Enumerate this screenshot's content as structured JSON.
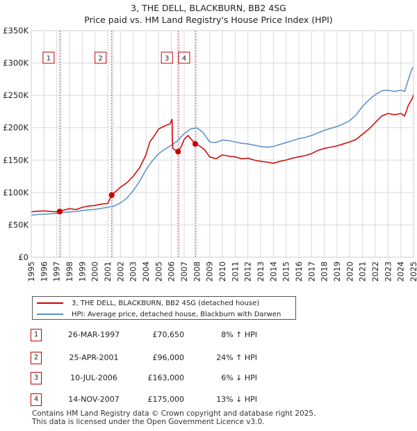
{
  "chart_data": {
    "type": "line",
    "title": "3, THE DELL, BLACKBURN, BB2 4SG",
    "subtitle": "Price paid vs. HM Land Registry's House Price Index (HPI)",
    "xlabel": "",
    "ylabel": "",
    "xlim": [
      1995,
      2025
    ],
    "ylim": [
      0,
      350000
    ],
    "x_ticks": [
      "1995",
      "1996",
      "1997",
      "1998",
      "1999",
      "2000",
      "2001",
      "2002",
      "2003",
      "2004",
      "2005",
      "2006",
      "2007",
      "2008",
      "2009",
      "2010",
      "2011",
      "2012",
      "2013",
      "2014",
      "2015",
      "2016",
      "2017",
      "2018",
      "2019",
      "2020",
      "2021",
      "2022",
      "2023",
      "2024",
      "2025"
    ],
    "y_ticks": [
      {
        "value": 0,
        "label": "£0"
      },
      {
        "value": 50000,
        "label": "£50K"
      },
      {
        "value": 100000,
        "label": "£100K"
      },
      {
        "value": 150000,
        "label": "£150K"
      },
      {
        "value": 200000,
        "label": "£200K"
      },
      {
        "value": 250000,
        "label": "£250K"
      },
      {
        "value": 300000,
        "label": "£300K"
      },
      {
        "value": 350000,
        "label": "£350K"
      }
    ],
    "grid": true,
    "series": [
      {
        "name": "3, THE DELL, BLACKBURN, BB2 4SG (detached house)",
        "color": "#cc0000",
        "points": [
          [
            1995.0,
            70000
          ],
          [
            1995.5,
            71000
          ],
          [
            1996.0,
            71500
          ],
          [
            1996.5,
            70500
          ],
          [
            1997.0,
            70000
          ],
          [
            1997.23,
            70650
          ],
          [
            1997.6,
            73000
          ],
          [
            1998.0,
            75000
          ],
          [
            1998.5,
            73500
          ],
          [
            1999.0,
            77000
          ],
          [
            1999.5,
            79000
          ],
          [
            2000.0,
            80000
          ],
          [
            2000.5,
            82000
          ],
          [
            2001.0,
            83000
          ],
          [
            2001.31,
            96000
          ],
          [
            2001.7,
            103000
          ],
          [
            2002.0,
            108000
          ],
          [
            2002.5,
            115000
          ],
          [
            2003.0,
            125000
          ],
          [
            2003.5,
            138000
          ],
          [
            2004.0,
            158000
          ],
          [
            2004.3,
            178000
          ],
          [
            2004.6,
            186000
          ],
          [
            2005.0,
            198000
          ],
          [
            2005.5,
            203000
          ],
          [
            2005.9,
            206000
          ],
          [
            2006.05,
            213000
          ],
          [
            2006.1,
            168000
          ],
          [
            2006.52,
            163000
          ],
          [
            2006.8,
            172000
          ],
          [
            2007.0,
            182000
          ],
          [
            2007.3,
            188000
          ],
          [
            2007.6,
            181000
          ],
          [
            2007.87,
            175000
          ],
          [
            2008.2,
            172000
          ],
          [
            2008.6,
            166000
          ],
          [
            2009.0,
            155000
          ],
          [
            2009.5,
            152000
          ],
          [
            2010.0,
            158000
          ],
          [
            2010.5,
            156000
          ],
          [
            2011.0,
            155000
          ],
          [
            2011.5,
            152000
          ],
          [
            2012.0,
            153000
          ],
          [
            2012.5,
            150000
          ],
          [
            2013.0,
            148000
          ],
          [
            2013.5,
            147000
          ],
          [
            2014.0,
            145000
          ],
          [
            2014.5,
            148000
          ],
          [
            2015.0,
            150000
          ],
          [
            2015.5,
            153000
          ],
          [
            2016.0,
            155000
          ],
          [
            2016.5,
            157000
          ],
          [
            2017.0,
            160000
          ],
          [
            2017.5,
            165000
          ],
          [
            2018.0,
            168000
          ],
          [
            2018.5,
            170000
          ],
          [
            2019.0,
            172000
          ],
          [
            2019.5,
            175000
          ],
          [
            2020.0,
            178000
          ],
          [
            2020.5,
            182000
          ],
          [
            2021.0,
            190000
          ],
          [
            2021.5,
            198000
          ],
          [
            2022.0,
            208000
          ],
          [
            2022.5,
            218000
          ],
          [
            2023.0,
            222000
          ],
          [
            2023.5,
            220000
          ],
          [
            2024.0,
            222000
          ],
          [
            2024.3,
            218000
          ],
          [
            2024.6,
            235000
          ],
          [
            2024.9,
            245000
          ],
          [
            2025.0,
            252000
          ]
        ]
      },
      {
        "name": "HPI: Average price, detached house, Blackburn with Darwen",
        "color": "#5b8cc8",
        "points": [
          [
            1995.0,
            65000
          ],
          [
            1995.5,
            66000
          ],
          [
            1996.0,
            66500
          ],
          [
            1996.5,
            67000
          ],
          [
            1997.0,
            67500
          ],
          [
            1997.5,
            69000
          ],
          [
            1998.0,
            70000
          ],
          [
            1998.5,
            70500
          ],
          [
            1999.0,
            72000
          ],
          [
            1999.5,
            73000
          ],
          [
            2000.0,
            74000
          ],
          [
            2000.5,
            75500
          ],
          [
            2001.0,
            77000
          ],
          [
            2001.5,
            79000
          ],
          [
            2002.0,
            84000
          ],
          [
            2002.5,
            91000
          ],
          [
            2003.0,
            103000
          ],
          [
            2003.5,
            117000
          ],
          [
            2004.0,
            135000
          ],
          [
            2004.5,
            149000
          ],
          [
            2005.0,
            160000
          ],
          [
            2005.5,
            167000
          ],
          [
            2006.0,
            173000
          ],
          [
            2006.5,
            180000
          ],
          [
            2007.0,
            191000
          ],
          [
            2007.5,
            198000
          ],
          [
            2008.0,
            200000
          ],
          [
            2008.5,
            192000
          ],
          [
            2009.0,
            178000
          ],
          [
            2009.5,
            177000
          ],
          [
            2010.0,
            181000
          ],
          [
            2010.5,
            180000
          ],
          [
            2011.0,
            178000
          ],
          [
            2011.5,
            176000
          ],
          [
            2012.0,
            175000
          ],
          [
            2012.5,
            173000
          ],
          [
            2013.0,
            171000
          ],
          [
            2013.5,
            170000
          ],
          [
            2014.0,
            171000
          ],
          [
            2014.5,
            174000
          ],
          [
            2015.0,
            177000
          ],
          [
            2015.5,
            180000
          ],
          [
            2016.0,
            183000
          ],
          [
            2016.5,
            185000
          ],
          [
            2017.0,
            188000
          ],
          [
            2017.5,
            192000
          ],
          [
            2018.0,
            196000
          ],
          [
            2018.5,
            199000
          ],
          [
            2019.0,
            202000
          ],
          [
            2019.5,
            206000
          ],
          [
            2020.0,
            211000
          ],
          [
            2020.5,
            220000
          ],
          [
            2021.0,
            233000
          ],
          [
            2021.5,
            243000
          ],
          [
            2022.0,
            251000
          ],
          [
            2022.5,
            257000
          ],
          [
            2023.0,
            258000
          ],
          [
            2023.5,
            256000
          ],
          [
            2024.0,
            258000
          ],
          [
            2024.3,
            256000
          ],
          [
            2024.6,
            275000
          ],
          [
            2024.9,
            292000
          ],
          [
            2025.0,
            293000
          ]
        ]
      }
    ],
    "transactions": [
      {
        "num": "1",
        "x": 1997.23,
        "value": 70650,
        "date": "26-MAR-1997",
        "price": "£70,650",
        "hpi": "8% ↑ HPI"
      },
      {
        "num": "2",
        "x": 2001.31,
        "value": 96000,
        "date": "25-APR-2001",
        "price": "£96,000",
        "hpi": "24% ↑ HPI"
      },
      {
        "num": "3",
        "x": 2006.52,
        "value": 163000,
        "date": "10-JUL-2006",
        "price": "£163,000",
        "hpi": "6% ↓ HPI"
      },
      {
        "num": "4",
        "x": 2007.87,
        "value": 175000,
        "date": "14-NOV-2007",
        "price": "£175,000",
        "hpi": "13% ↓ HPI"
      }
    ],
    "legend_position": "below"
  },
  "legend": {
    "property_label": "3, THE DELL, BLACKBURN, BB2 4SG (detached house)",
    "hpi_label": "HPI: Average price, detached house, Blackburn with Darwen",
    "property_color": "#cc0000",
    "hpi_color": "#5b8cc8"
  },
  "footer": {
    "line1": "Contains HM Land Registry data © Crown copyright and database right 2025.",
    "line2": "This data is licensed under the Open Government Licence v3.0."
  }
}
